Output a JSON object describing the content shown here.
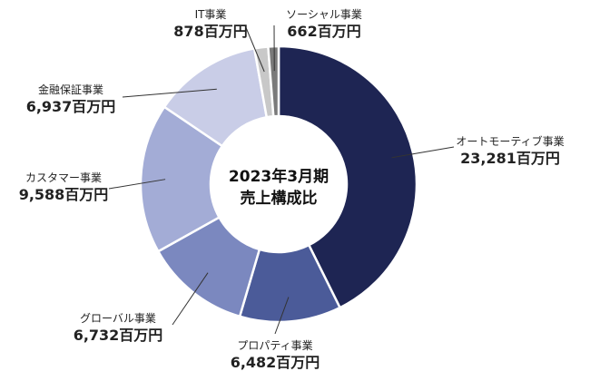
{
  "chart_data": {
    "type": "pie",
    "style": "donut",
    "center_label": [
      "2023年3月期",
      "売上構成比"
    ],
    "unit": "百万円",
    "segments": [
      {
        "name": "オートモーティブ事業",
        "value": 23281,
        "label": "23,281百万円",
        "color": "#1e2553"
      },
      {
        "name": "プロパティ事業",
        "value": 6482,
        "label": "6,482百万円",
        "color": "#4b5b99"
      },
      {
        "name": "グローバル事業",
        "value": 6732,
        "label": "6,732百万円",
        "color": "#7b88bf"
      },
      {
        "name": "カスタマー事業",
        "value": 9588,
        "label": "9,588百万円",
        "color": "#a3acd6"
      },
      {
        "name": "金融保証事業",
        "value": 6937,
        "label": "6,937百万円",
        "color": "#c9cde7"
      },
      {
        "name": "IT事業",
        "value": 878,
        "label": "878百万円",
        "color": "#c8c8c8"
      },
      {
        "name": "ソーシャル事業",
        "value": 662,
        "label": "662百万円",
        "color": "#7a7a7a"
      }
    ]
  }
}
